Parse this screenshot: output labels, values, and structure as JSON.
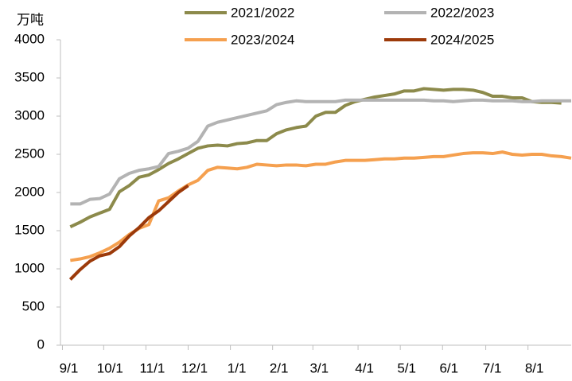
{
  "chart_data": {
    "type": "line",
    "y_label": "万吨",
    "legend": "top",
    "x": [
      1,
      2,
      3,
      4,
      5,
      6,
      7,
      8,
      9,
      10,
      11,
      12,
      13,
      14,
      15,
      16,
      17,
      18,
      19,
      20,
      21,
      22,
      23,
      24,
      25,
      26,
      27,
      28,
      29,
      30,
      31,
      32,
      33,
      34,
      35,
      36,
      37,
      38,
      39,
      40,
      41,
      42,
      43,
      44,
      45,
      46,
      47,
      48,
      49,
      50,
      51,
      52
    ],
    "xlim": [
      0,
      52
    ],
    "xticks": [
      {
        "value": 0.2,
        "label": "9/1"
      },
      {
        "value": 4.4,
        "label": "10/1"
      },
      {
        "value": 8.7,
        "label": "11/1"
      },
      {
        "value": 13,
        "label": "12/1"
      },
      {
        "value": 17.3,
        "label": "1/1"
      },
      {
        "value": 21.6,
        "label": "2/1"
      },
      {
        "value": 25.7,
        "label": "3/1"
      },
      {
        "value": 30.3,
        "label": "4/1"
      },
      {
        "value": 34.6,
        "label": "5/1"
      },
      {
        "value": 38.9,
        "label": "6/1"
      },
      {
        "value": 43.3,
        "label": "7/1"
      },
      {
        "value": 47.6,
        "label": "8/1"
      }
    ],
    "ylim": [
      0,
      4000
    ],
    "yticks": [
      0,
      500,
      1000,
      1500,
      2000,
      2500,
      3000,
      3500,
      4000
    ],
    "series": [
      {
        "name": "2021/2022",
        "color": "#8c8a4b",
        "values": [
          1550,
          1610,
          1680,
          1730,
          1780,
          2010,
          2090,
          2200,
          2230,
          2300,
          2380,
          2440,
          2510,
          2580,
          2610,
          2620,
          2610,
          2640,
          2650,
          2680,
          2680,
          2770,
          2820,
          2850,
          2870,
          3000,
          3050,
          3050,
          3140,
          3190,
          3220,
          3250,
          3270,
          3290,
          3330,
          3330,
          3360,
          3350,
          3340,
          3350,
          3350,
          3340,
          3310,
          3260,
          3260,
          3240,
          3240,
          3190,
          3180,
          3180,
          3170,
          null
        ]
      },
      {
        "name": "2022/2023",
        "color": "#b3b3b3",
        "values": [
          1850,
          1850,
          1910,
          1920,
          1980,
          2180,
          2250,
          2290,
          2310,
          2340,
          2510,
          2540,
          2580,
          2670,
          2870,
          2920,
          2950,
          2980,
          3010,
          3040,
          3070,
          3150,
          3180,
          3200,
          3190,
          3190,
          3190,
          3190,
          3210,
          3210,
          3210,
          3210,
          3210,
          3210,
          3210,
          3210,
          3210,
          3200,
          3200,
          3190,
          3200,
          3210,
          3210,
          3200,
          3200,
          3200,
          3190,
          3190,
          3200,
          3200,
          3200,
          3200
        ]
      },
      {
        "name": "2023/2024",
        "color": "#f5a04f",
        "values": [
          1110,
          1130,
          1160,
          1210,
          1270,
          1350,
          1450,
          1530,
          1580,
          1890,
          1930,
          2020,
          2100,
          2160,
          2290,
          2330,
          2320,
          2310,
          2330,
          2370,
          2360,
          2350,
          2360,
          2360,
          2350,
          2370,
          2370,
          2400,
          2420,
          2420,
          2420,
          2430,
          2440,
          2440,
          2450,
          2450,
          2460,
          2470,
          2470,
          2490,
          2510,
          2520,
          2520,
          2510,
          2530,
          2500,
          2490,
          2500,
          2500,
          2480,
          2470,
          2450
        ]
      },
      {
        "name": "2024/2025",
        "color": "#9c3a0a",
        "values": [
          860,
          990,
          1100,
          1170,
          1200,
          1290,
          1430,
          1540,
          1670,
          1760,
          1880,
          2000,
          2090,
          null,
          null,
          null,
          null,
          null,
          null,
          null,
          null,
          null,
          null,
          null,
          null,
          null,
          null,
          null,
          null,
          null,
          null,
          null,
          null,
          null,
          null,
          null,
          null,
          null,
          null,
          null,
          null,
          null,
          null,
          null,
          null,
          null,
          null,
          null,
          null,
          null,
          null,
          null
        ]
      }
    ]
  }
}
